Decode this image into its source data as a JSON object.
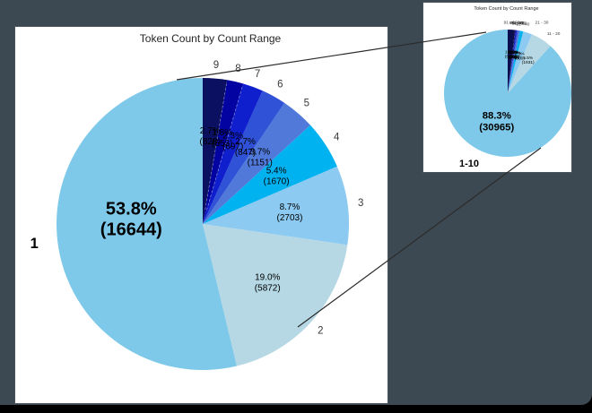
{
  "page": {
    "background_color": "#3D4952",
    "frame_color": "#000000",
    "card_color": "#ffffff"
  },
  "chart_data": [
    {
      "type": "pie",
      "title": "Token Count by Count Range",
      "categories": [
        "1",
        "2",
        "3",
        "4",
        "5",
        "6",
        "7",
        "8",
        "9"
      ],
      "values": [
        16644,
        5872,
        2703,
        1670,
        1151,
        847,
        697,
        553,
        828
      ],
      "percent_labels": [
        "53.8%",
        "19.0%",
        "8.7%",
        "5.4%",
        "3.7%",
        "2.7%",
        "2.3%",
        "1.8%",
        "2.7%"
      ],
      "count_labels": [
        "(16644)",
        "(5872)",
        "(2703)",
        "(1670)",
        "(1151)",
        "(847)",
        "(697)",
        "(553)",
        "(828)"
      ],
      "colors": [
        "#7EC9E9",
        "#B5D8E4",
        "#8CCAF1",
        "#00B2F0",
        "#5179DA",
        "#2F52D6",
        "#101FCE",
        "#0203A0",
        "#0B1060"
      ],
      "start_angle": 90,
      "counterclock": true,
      "emphasis_index": 0,
      "total": 30965,
      "legend": "none"
    },
    {
      "type": "pie",
      "title": "Token Count by Count Range",
      "categories": [
        "1-10",
        "11 - 20",
        "21 - 30",
        "31 - 40",
        "41 - 50",
        "51 - 60",
        "61 - 70",
        "71 - 80",
        "81 - 90",
        "91 - 100"
      ],
      "values": [
        30965,
        1931,
        800,
        300,
        150,
        100,
        75,
        60,
        50,
        637
      ],
      "percent_labels": [
        "88.3%",
        "5.5%",
        "2.3%",
        "0.9%",
        "0.4%",
        "0.3%",
        "0.2%",
        "0.2%",
        "0.1%",
        "1.8%"
      ],
      "count_labels": [
        "(30965)",
        "(1931)",
        "(800)",
        "(300)",
        "(150)",
        "(100)",
        "(75)",
        "(60)",
        "(50)",
        "(637)"
      ],
      "colors": [
        "#7EC9E9",
        "#B5D8E4",
        "#8CCAF1",
        "#00B2F0",
        "#5179DA",
        "#2F52D6",
        "#101FCE",
        "#0203A0",
        "#0B1060",
        "#0A0D4E"
      ],
      "start_angle": 90,
      "counterclock": true,
      "emphasis_index": 0,
      "legend": "none"
    }
  ]
}
